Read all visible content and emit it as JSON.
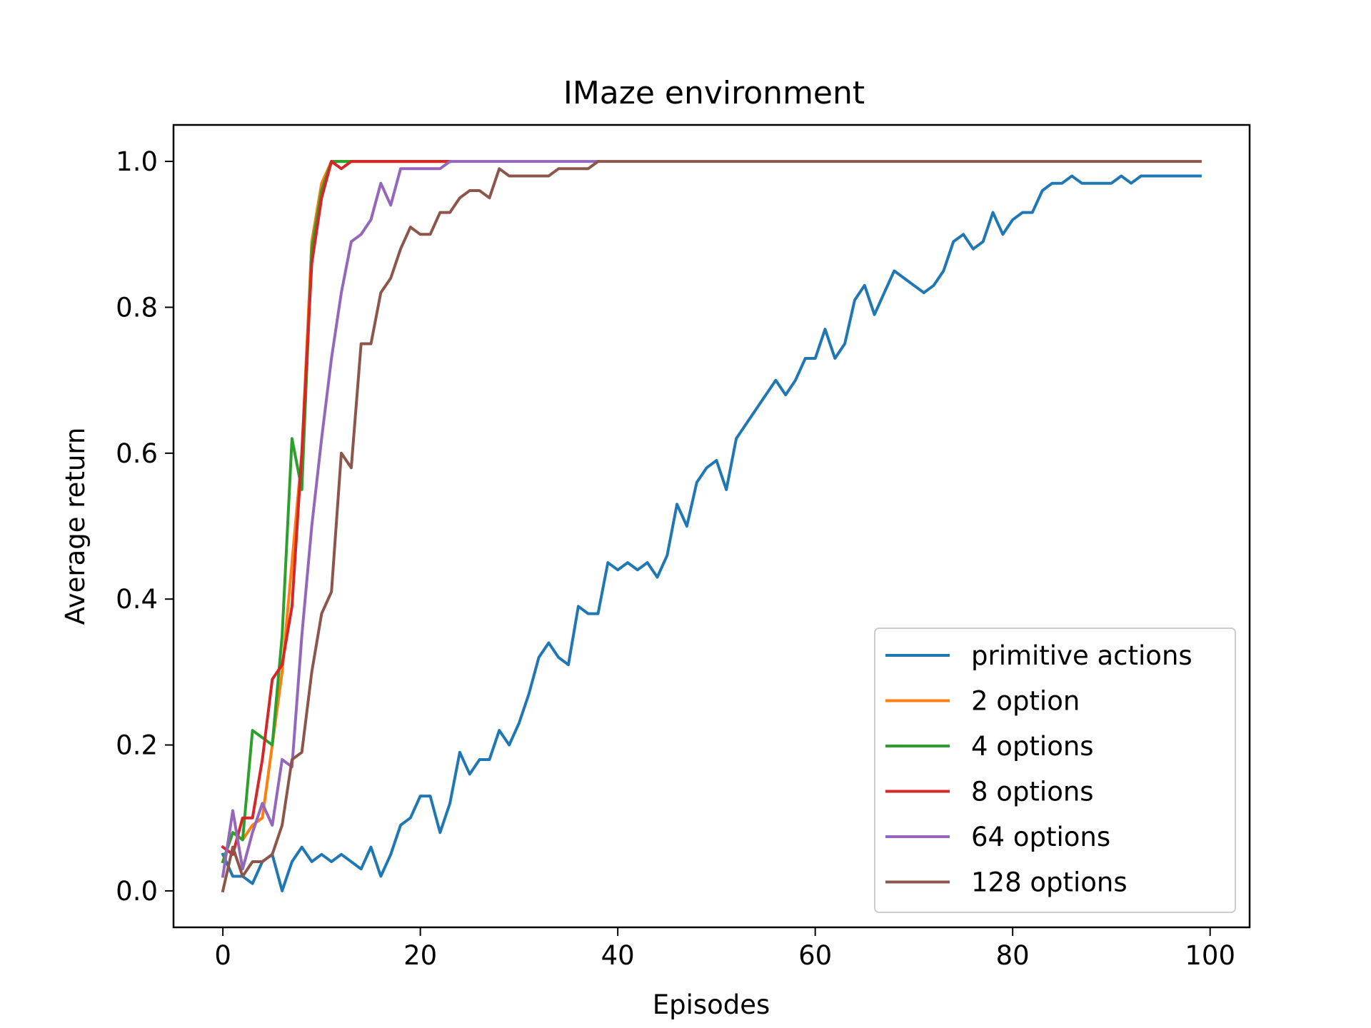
{
  "chart_data": {
    "type": "line",
    "title": "IMaze environment",
    "xlabel": "Episodes",
    "ylabel": "Average return",
    "xlim": [
      -5,
      104
    ],
    "ylim": [
      -0.05,
      1.05
    ],
    "xticks": [
      0,
      20,
      40,
      60,
      80,
      100
    ],
    "yticks": [
      0.0,
      0.2,
      0.4,
      0.6,
      0.8,
      1.0
    ],
    "xtick_labels": [
      "0",
      "20",
      "40",
      "60",
      "80",
      "100"
    ],
    "ytick_labels": [
      "0.0",
      "0.2",
      "0.4",
      "0.6",
      "0.8",
      "1.0"
    ],
    "grid": false,
    "legend_position": "lower-right",
    "series": [
      {
        "name": "primitive actions",
        "color": "#1f77b4",
        "x": [
          0,
          1,
          2,
          3,
          4,
          5,
          6,
          7,
          8,
          9,
          10,
          11,
          12,
          13,
          14,
          15,
          16,
          17,
          18,
          19,
          20,
          21,
          22,
          23,
          24,
          25,
          26,
          27,
          28,
          29,
          30,
          31,
          32,
          33,
          34,
          35,
          36,
          37,
          38,
          39,
          40,
          41,
          42,
          43,
          44,
          45,
          46,
          47,
          48,
          49,
          50,
          51,
          52,
          53,
          54,
          55,
          56,
          57,
          58,
          59,
          60,
          61,
          62,
          63,
          64,
          65,
          66,
          67,
          68,
          69,
          70,
          71,
          72,
          73,
          74,
          75,
          76,
          77,
          78,
          79,
          80,
          81,
          82,
          83,
          84,
          85,
          86,
          87,
          88,
          89,
          90,
          91,
          92,
          93,
          94,
          95,
          96,
          97,
          98,
          99
        ],
        "y": [
          0.05,
          0.02,
          0.02,
          0.01,
          0.04,
          0.05,
          0.0,
          0.04,
          0.06,
          0.04,
          0.05,
          0.04,
          0.05,
          0.04,
          0.03,
          0.06,
          0.02,
          0.05,
          0.09,
          0.1,
          0.13,
          0.13,
          0.08,
          0.12,
          0.19,
          0.16,
          0.18,
          0.18,
          0.22,
          0.2,
          0.23,
          0.27,
          0.32,
          0.34,
          0.32,
          0.31,
          0.39,
          0.38,
          0.38,
          0.45,
          0.44,
          0.45,
          0.44,
          0.45,
          0.43,
          0.46,
          0.53,
          0.5,
          0.56,
          0.58,
          0.59,
          0.55,
          0.62,
          0.64,
          0.66,
          0.68,
          0.7,
          0.68,
          0.7,
          0.73,
          0.73,
          0.77,
          0.73,
          0.75,
          0.81,
          0.83,
          0.79,
          0.82,
          0.85,
          0.84,
          0.83,
          0.82,
          0.83,
          0.85,
          0.89,
          0.9,
          0.88,
          0.89,
          0.93,
          0.9,
          0.92,
          0.93,
          0.93,
          0.96,
          0.97,
          0.97,
          0.98,
          0.97,
          0.97,
          0.97,
          0.97,
          0.98,
          0.97,
          0.98,
          0.98,
          0.98,
          0.98,
          0.98,
          0.98,
          0.98
        ]
      },
      {
        "name": "2 option",
        "color": "#ff7f0e",
        "x": [
          0,
          1,
          2,
          3,
          4,
          5,
          6,
          7,
          8,
          9,
          10,
          11,
          12,
          13,
          14,
          15,
          16,
          17,
          18,
          19,
          20,
          21,
          22,
          23
        ],
        "y": [
          0.04,
          0.08,
          0.07,
          0.09,
          0.1,
          0.2,
          0.3,
          0.45,
          0.6,
          0.89,
          0.97,
          1.0,
          1.0,
          1.0,
          1.0,
          1.0,
          1.0,
          1.0,
          1.0,
          1.0,
          1.0,
          1.0,
          1.0,
          1.0
        ]
      },
      {
        "name": "4 options",
        "color": "#2ca02c",
        "x": [
          0,
          1,
          2,
          3,
          4,
          5,
          6,
          7,
          8,
          9,
          10,
          11,
          12,
          13,
          14,
          15,
          16,
          17,
          18,
          19,
          20,
          21,
          22,
          23
        ],
        "y": [
          0.04,
          0.08,
          0.07,
          0.22,
          0.21,
          0.2,
          0.35,
          0.62,
          0.55,
          0.88,
          0.96,
          1.0,
          1.0,
          1.0,
          1.0,
          1.0,
          1.0,
          1.0,
          1.0,
          1.0,
          1.0,
          1.0,
          1.0,
          1.0
        ]
      },
      {
        "name": "8 options",
        "color": "#d62728",
        "x": [
          0,
          1,
          2,
          3,
          4,
          5,
          6,
          7,
          8,
          9,
          10,
          11,
          12,
          13,
          14,
          15,
          16,
          17,
          18,
          19,
          20,
          21,
          22,
          23
        ],
        "y": [
          0.06,
          0.05,
          0.1,
          0.1,
          0.18,
          0.29,
          0.31,
          0.39,
          0.6,
          0.86,
          0.95,
          1.0,
          0.99,
          1.0,
          1.0,
          1.0,
          1.0,
          1.0,
          1.0,
          1.0,
          1.0,
          1.0,
          1.0,
          1.0
        ]
      },
      {
        "name": "64 options",
        "color": "#9467bd",
        "x": [
          0,
          1,
          2,
          3,
          4,
          5,
          6,
          7,
          8,
          9,
          10,
          11,
          12,
          13,
          14,
          15,
          16,
          17,
          18,
          19,
          20,
          21,
          22,
          23,
          24,
          25,
          26,
          27,
          28,
          29,
          30,
          31,
          32,
          33,
          34,
          35,
          36,
          37,
          38
        ],
        "y": [
          0.02,
          0.11,
          0.03,
          0.08,
          0.12,
          0.09,
          0.18,
          0.17,
          0.35,
          0.5,
          0.62,
          0.73,
          0.82,
          0.89,
          0.9,
          0.92,
          0.97,
          0.94,
          0.99,
          0.99,
          0.99,
          0.99,
          0.99,
          1.0,
          1.0,
          1.0,
          1.0,
          1.0,
          1.0,
          1.0,
          1.0,
          1.0,
          1.0,
          1.0,
          1.0,
          1.0,
          1.0,
          1.0,
          1.0
        ]
      },
      {
        "name": "128 options",
        "color": "#8c564b",
        "x": [
          0,
          1,
          2,
          3,
          4,
          5,
          6,
          7,
          8,
          9,
          10,
          11,
          12,
          13,
          14,
          15,
          16,
          17,
          18,
          19,
          20,
          21,
          22,
          23,
          24,
          25,
          26,
          27,
          28,
          29,
          30,
          31,
          32,
          33,
          34,
          35,
          36,
          37,
          38,
          39,
          40,
          45,
          50,
          55,
          60,
          65,
          70,
          75,
          80,
          85,
          90,
          95,
          99
        ],
        "y": [
          0.0,
          0.06,
          0.02,
          0.04,
          0.04,
          0.05,
          0.09,
          0.18,
          0.19,
          0.3,
          0.38,
          0.41,
          0.6,
          0.58,
          0.75,
          0.75,
          0.82,
          0.84,
          0.88,
          0.91,
          0.9,
          0.9,
          0.93,
          0.93,
          0.95,
          0.96,
          0.96,
          0.95,
          0.99,
          0.98,
          0.98,
          0.98,
          0.98,
          0.98,
          0.99,
          0.99,
          0.99,
          0.99,
          1.0,
          1.0,
          1.0,
          1.0,
          1.0,
          1.0,
          1.0,
          1.0,
          1.0,
          1.0,
          1.0,
          1.0,
          1.0,
          1.0,
          1.0
        ]
      }
    ]
  }
}
